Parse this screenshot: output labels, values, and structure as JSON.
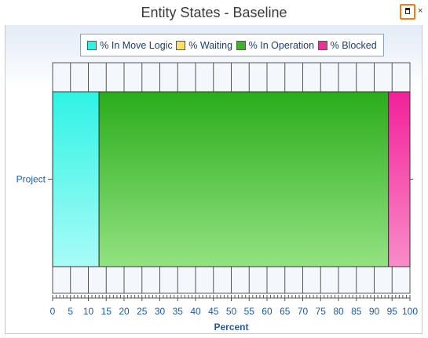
{
  "window": {
    "title": "Entity States - Baseline",
    "restore_icon": "restore-window-icon",
    "close_glyph": "×"
  },
  "chart_data": {
    "type": "bar",
    "orientation": "horizontal",
    "stacked": true,
    "title": "Entity States - Baseline",
    "categories": [
      "Project"
    ],
    "series": [
      {
        "name": "% In Move Logic",
        "values": [
          13
        ],
        "color": "#2ef3e4"
      },
      {
        "name": "% Waiting",
        "values": [
          0
        ],
        "color": "#ffe066"
      },
      {
        "name": "% In Operation",
        "values": [
          81
        ],
        "color": "#3db52a"
      },
      {
        "name": "% Blocked",
        "values": [
          6
        ],
        "color": "#f0309a"
      }
    ],
    "xlabel": "Percent",
    "ylabel": "",
    "xlim": [
      0,
      100
    ],
    "xticks": [
      0,
      5,
      10,
      15,
      20,
      25,
      30,
      35,
      40,
      45,
      50,
      55,
      60,
      65,
      70,
      75,
      80,
      85,
      90,
      95,
      100
    ],
    "grid": true,
    "legend_position": "top"
  }
}
